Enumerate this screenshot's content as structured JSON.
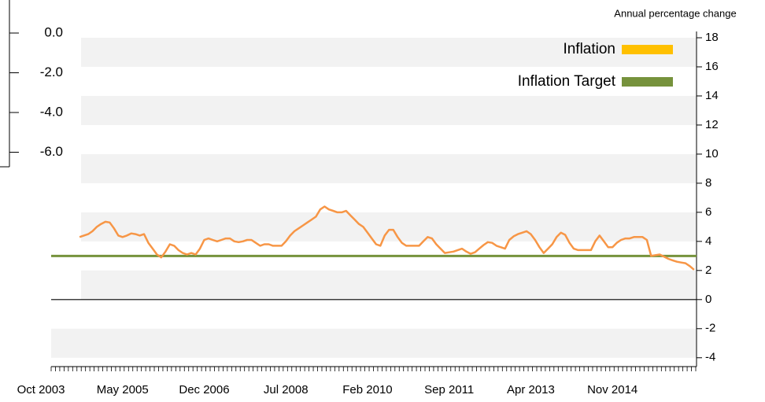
{
  "chart_data": {
    "type": "line",
    "title": "Annual percentage change",
    "categories": [
      "Oct 2003",
      null,
      null,
      null,
      null,
      null,
      null,
      null,
      null,
      null,
      null,
      null,
      null,
      null,
      null,
      null,
      null,
      null,
      null,
      "May 2005",
      null,
      null,
      null,
      null,
      null,
      null,
      null,
      null,
      null,
      null,
      null,
      null,
      null,
      null,
      null,
      null,
      null,
      null,
      "Dec 2006",
      null,
      null,
      null,
      null,
      null,
      null,
      null,
      null,
      null,
      null,
      null,
      null,
      null,
      null,
      null,
      null,
      null,
      null,
      "Jul 2008",
      null,
      null,
      null,
      null,
      null,
      null,
      null,
      null,
      null,
      null,
      null,
      null,
      null,
      null,
      null,
      null,
      null,
      null,
      "Feb 2010",
      null,
      null,
      null,
      null,
      null,
      null,
      null,
      null,
      null,
      null,
      null,
      null,
      null,
      null,
      null,
      null,
      null,
      null,
      "Sep 2011",
      null,
      null,
      null,
      null,
      null,
      null,
      null,
      null,
      null,
      null,
      null,
      null,
      null,
      null,
      null,
      null,
      null,
      null,
      "Apr 2013",
      null,
      null,
      null,
      null,
      null,
      null,
      null,
      null,
      null,
      null,
      null,
      null,
      null,
      null,
      null,
      null,
      null,
      null,
      "Nov 2014",
      null,
      null,
      null,
      null,
      null,
      null,
      null,
      null,
      null,
      null,
      null,
      null,
      null,
      null,
      null,
      null,
      null,
      null,
      null
    ],
    "series": [
      {
        "name": "Inflation",
        "color": "#f79646",
        "legend_color": "#ffc000",
        "values": [
          null,
          null,
          null,
          null,
          null,
          null,
          null,
          null,
          null,
          4.3,
          4.4,
          4.5,
          4.7,
          5.0,
          5.2,
          5.35,
          5.3,
          4.9,
          4.4,
          4.3,
          4.4,
          4.55,
          4.5,
          4.4,
          4.5,
          3.9,
          3.5,
          3.1,
          2.9,
          3.3,
          3.8,
          3.7,
          3.4,
          3.2,
          3.1,
          3.2,
          3.1,
          3.5,
          4.1,
          4.2,
          4.1,
          4.0,
          4.1,
          4.2,
          4.2,
          4.0,
          3.95,
          4.0,
          4.1,
          4.1,
          3.9,
          3.7,
          3.8,
          3.8,
          3.7,
          3.7,
          3.7,
          4.0,
          4.4,
          4.7,
          4.9,
          5.1,
          5.3,
          5.5,
          5.7,
          6.2,
          6.4,
          6.2,
          6.1,
          6.0,
          6.0,
          6.1,
          5.8,
          5.5,
          5.2,
          5.0,
          4.6,
          4.2,
          3.8,
          3.7,
          4.4,
          4.8,
          4.8,
          4.3,
          3.9,
          3.7,
          3.7,
          3.7,
          3.7,
          4.0,
          4.3,
          4.2,
          3.8,
          3.5,
          3.2,
          3.25,
          3.3,
          3.4,
          3.5,
          3.3,
          3.15,
          3.25,
          3.5,
          3.75,
          3.95,
          3.9,
          3.7,
          3.6,
          3.5,
          4.1,
          4.35,
          4.5,
          4.6,
          4.7,
          4.5,
          4.1,
          3.6,
          3.2,
          3.5,
          3.8,
          4.3,
          4.6,
          4.45,
          3.9,
          3.5,
          3.4,
          3.4,
          3.4,
          3.4,
          4.0,
          4.4,
          4.0,
          3.6,
          3.6,
          3.9,
          4.1,
          4.2,
          4.2,
          4.3,
          4.3,
          4.3,
          4.1,
          3.0,
          3.05,
          3.1,
          2.95,
          2.8,
          2.7,
          2.6,
          2.55,
          2.5,
          2.3,
          2.05
        ]
      }
    ],
    "target": {
      "name": "Inflation Target",
      "value": 3,
      "color": "#76923c"
    },
    "ylim": [
      -4.5,
      18
    ],
    "yticks": [
      -4,
      -2,
      0,
      2,
      4,
      6,
      8,
      10,
      12,
      14,
      16,
      18
    ],
    "bands": true,
    "background_axis": {
      "labels": [
        "0.0",
        "-2.0",
        "-4.0",
        "-6.0"
      ]
    }
  }
}
